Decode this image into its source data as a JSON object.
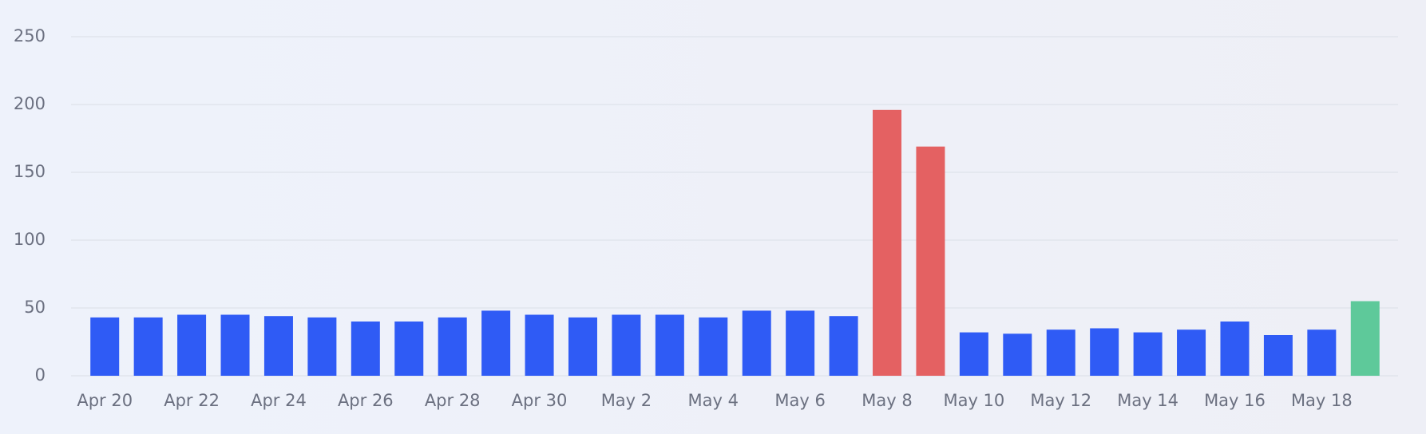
{
  "chart_data": {
    "type": "bar",
    "categories": [
      "Apr 20",
      null,
      "Apr 22",
      null,
      "Apr 24",
      null,
      "Apr 26",
      null,
      "Apr 28",
      null,
      "Apr 30",
      null,
      "May 2",
      null,
      "May 4",
      null,
      "May 6",
      null,
      "May 8",
      null,
      "May 10",
      null,
      "May 12",
      null,
      "May 14",
      null,
      "May 16",
      null,
      "May 18",
      null
    ],
    "values": [
      43,
      43,
      45,
      45,
      44,
      43,
      40,
      40,
      43,
      48,
      45,
      43,
      45,
      45,
      43,
      48,
      48,
      44,
      196,
      169,
      32,
      31,
      34,
      35,
      32,
      34,
      40,
      30,
      34,
      55
    ],
    "colors": [
      "#2f5bf5",
      "#2f5bf5",
      "#2f5bf5",
      "#2f5bf5",
      "#2f5bf5",
      "#2f5bf5",
      "#2f5bf5",
      "#2f5bf5",
      "#2f5bf5",
      "#2f5bf5",
      "#2f5bf5",
      "#2f5bf5",
      "#2f5bf5",
      "#2f5bf5",
      "#2f5bf5",
      "#2f5bf5",
      "#2f5bf5",
      "#2f5bf5",
      "#e46162",
      "#e46162",
      "#2f5bf5",
      "#2f5bf5",
      "#2f5bf5",
      "#2f5bf5",
      "#2f5bf5",
      "#2f5bf5",
      "#2f5bf5",
      "#2f5bf5",
      "#2f5bf5",
      "#5ec99a"
    ],
    "ylim": [
      0,
      250
    ],
    "yticks": [
      0,
      50,
      100,
      150,
      200,
      250
    ],
    "grid": true
  }
}
